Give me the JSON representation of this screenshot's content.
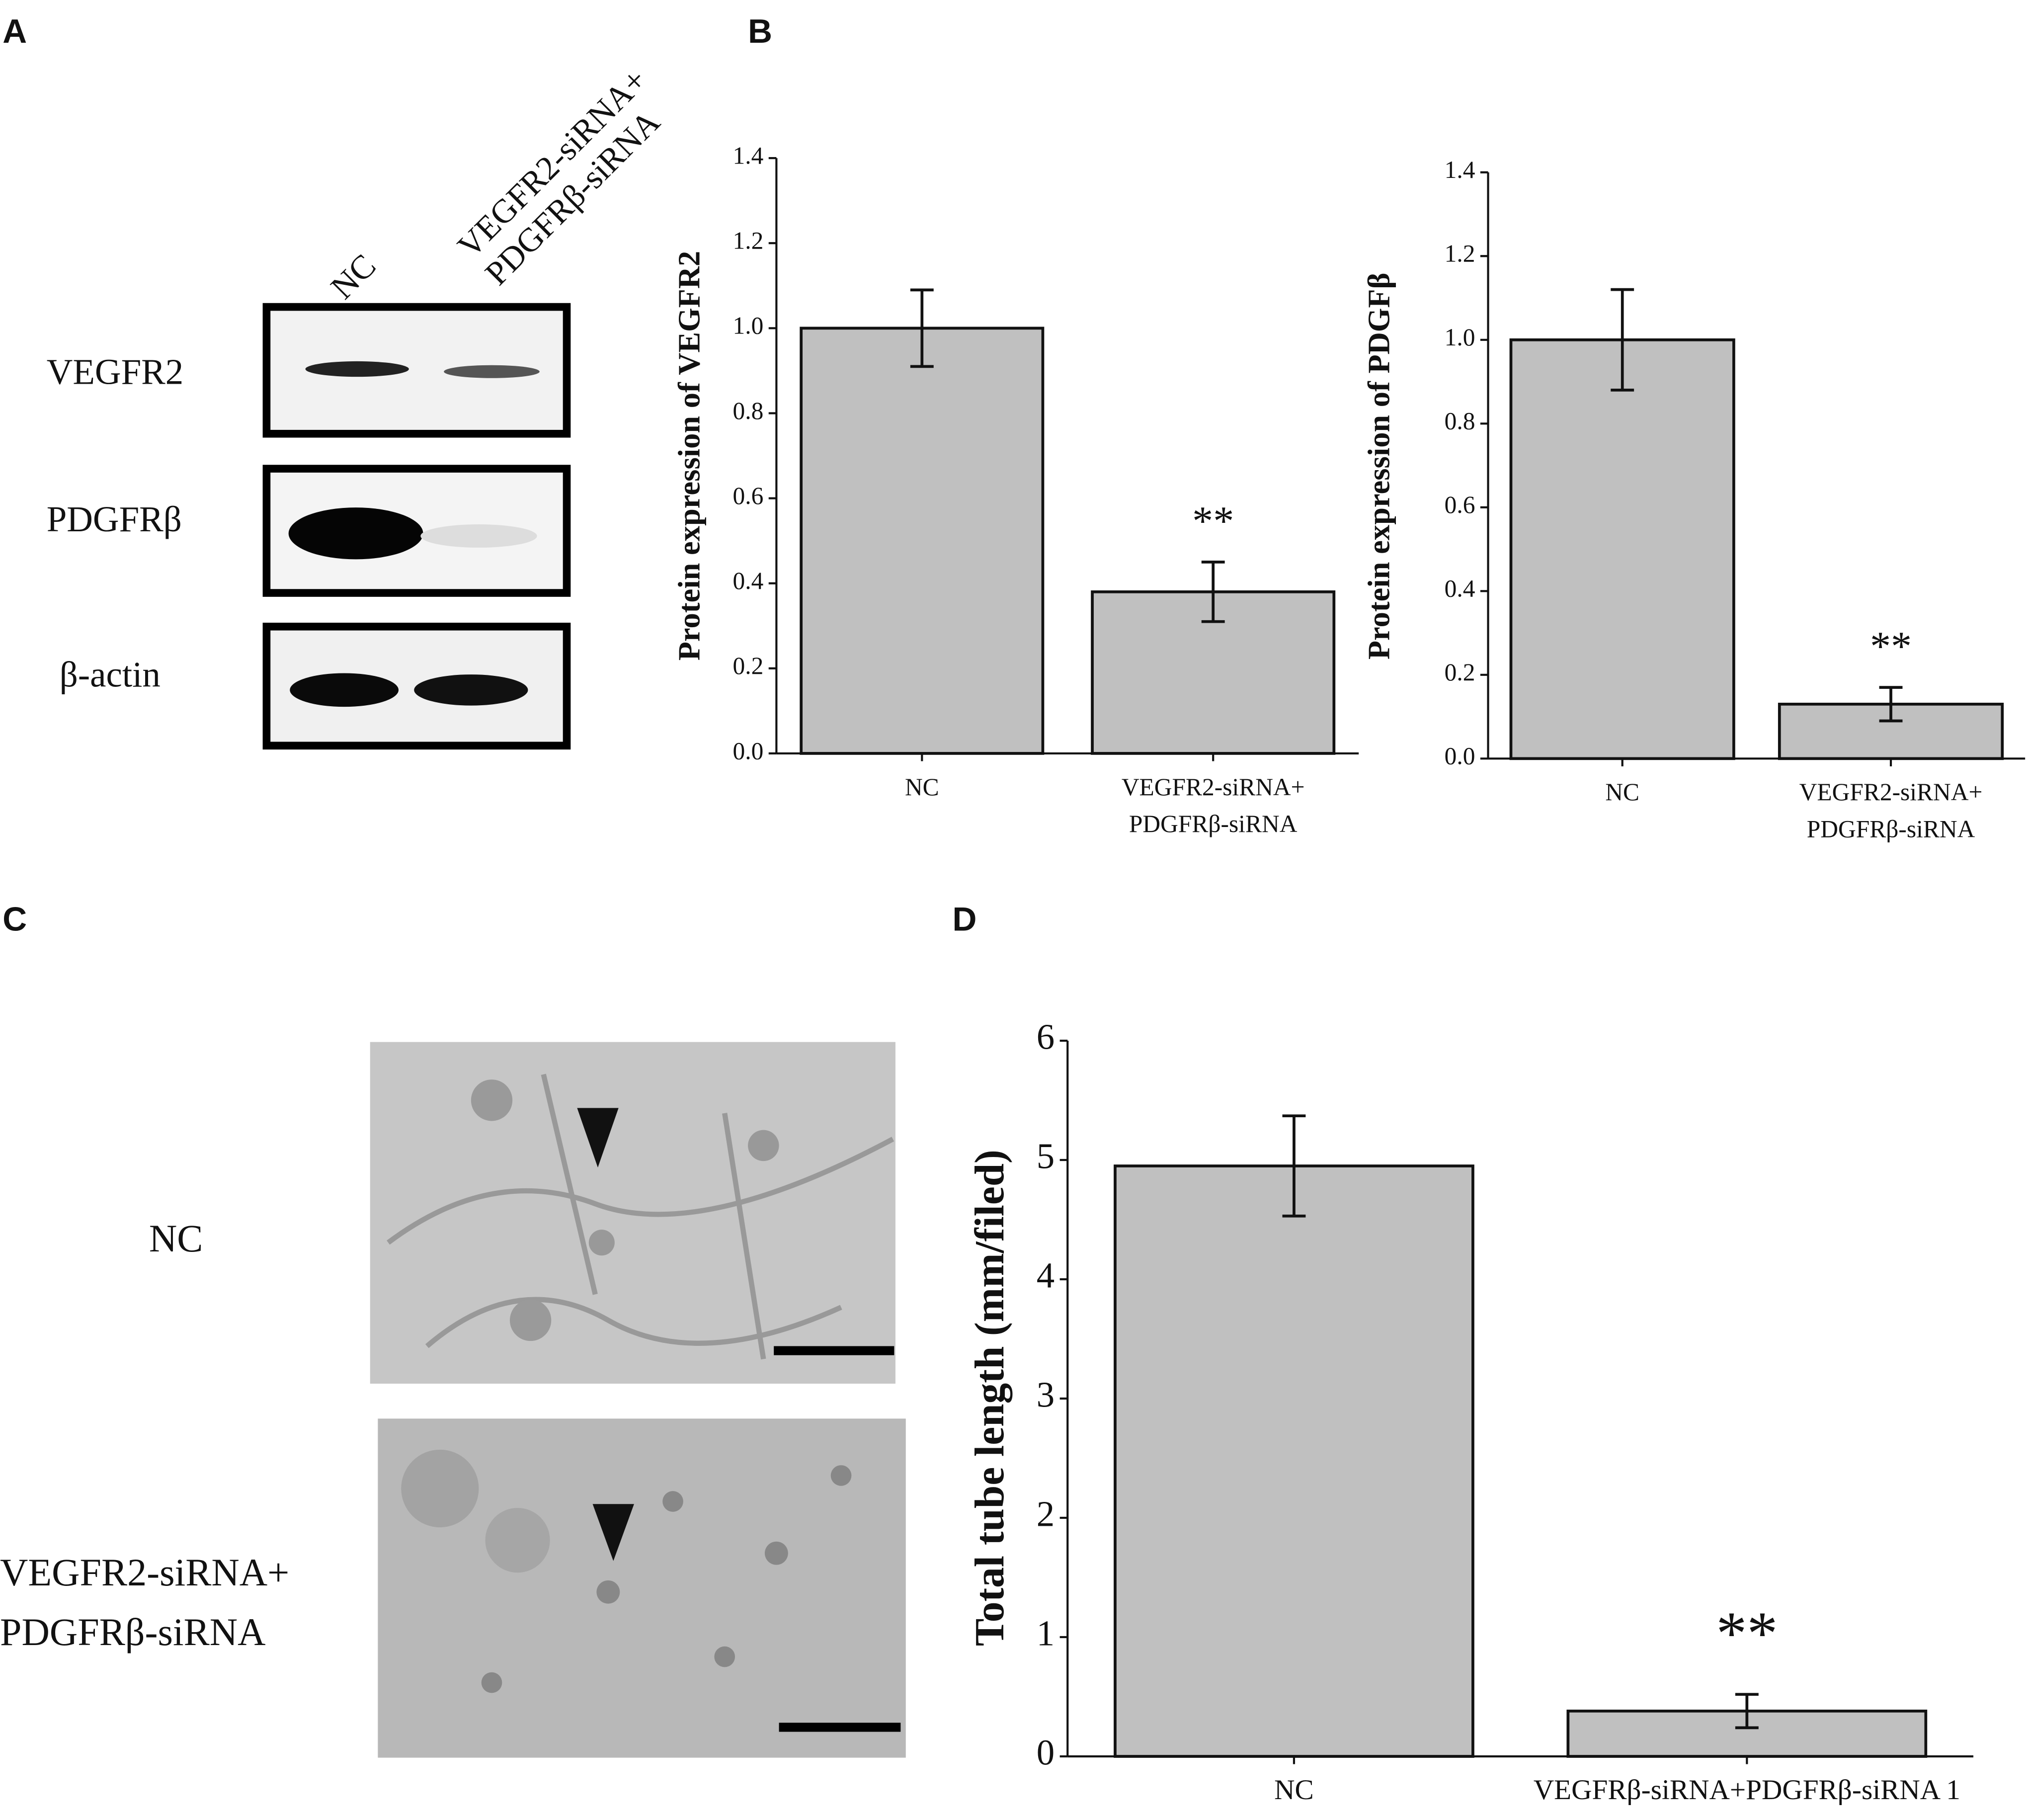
{
  "panel_labels": [
    "A",
    "B",
    "C",
    "D"
  ],
  "blot": {
    "lanes": [
      "NC",
      "VEGFR2-siRNA+\nPDGFRβ-siRNA"
    ],
    "rows": [
      "VEGFR2",
      "PDGFRβ",
      "β-actin"
    ]
  },
  "micrograph": {
    "rows": [
      "NC",
      "VEGFR2-siRNA+\nPDGFRβ-siRNA"
    ]
  },
  "chart_data": [
    {
      "type": "bar",
      "y_label": "Protein expression of VEGFR2",
      "categories": [
        "NC",
        "VEGFR2-siRNA+\nPDGFRβ-siRNA"
      ],
      "values": [
        1.0,
        0.38
      ],
      "errors": [
        0.09,
        0.07
      ],
      "significance": [
        null,
        "**"
      ],
      "color": "#c0c0c0",
      "ylim": [
        0,
        1.4
      ],
      "yticks": [
        {
          "value": 0,
          "label": "0.0"
        },
        0.2,
        0.4,
        0.6,
        0.8,
        {
          "value": 1,
          "label": "1.0"
        },
        1.2,
        1.4
      ]
    },
    {
      "type": "bar",
      "y_label": "Protein expression of PDGFβ",
      "categories": [
        "NC",
        "VEGFR2-siRNA+\nPDGFRβ-siRNA"
      ],
      "values": [
        1.0,
        0.13
      ],
      "errors": [
        0.12,
        0.04
      ],
      "significance": [
        null,
        "**"
      ],
      "color": "#c0c0c0",
      "ylim": [
        0,
        1.4
      ],
      "yticks": [
        {
          "value": 0,
          "label": "0.0"
        },
        0.2,
        0.4,
        0.6,
        0.8,
        {
          "value": 1,
          "label": "1.0"
        },
        1.2,
        1.4
      ]
    },
    {
      "type": "bar",
      "y_label": "Total tube length (mm/filed)",
      "categories": [
        "NC",
        "VEGFRβ-siRNA+PDGFRβ-siRNA 1"
      ],
      "values": [
        4.95,
        0.38
      ],
      "errors": [
        0.42,
        0.14
      ],
      "significance": [
        null,
        "**"
      ],
      "color": "#c0c0c0",
      "ylim": [
        0,
        6
      ],
      "yticks": [
        0,
        1,
        2,
        3,
        4,
        5,
        6
      ]
    }
  ]
}
